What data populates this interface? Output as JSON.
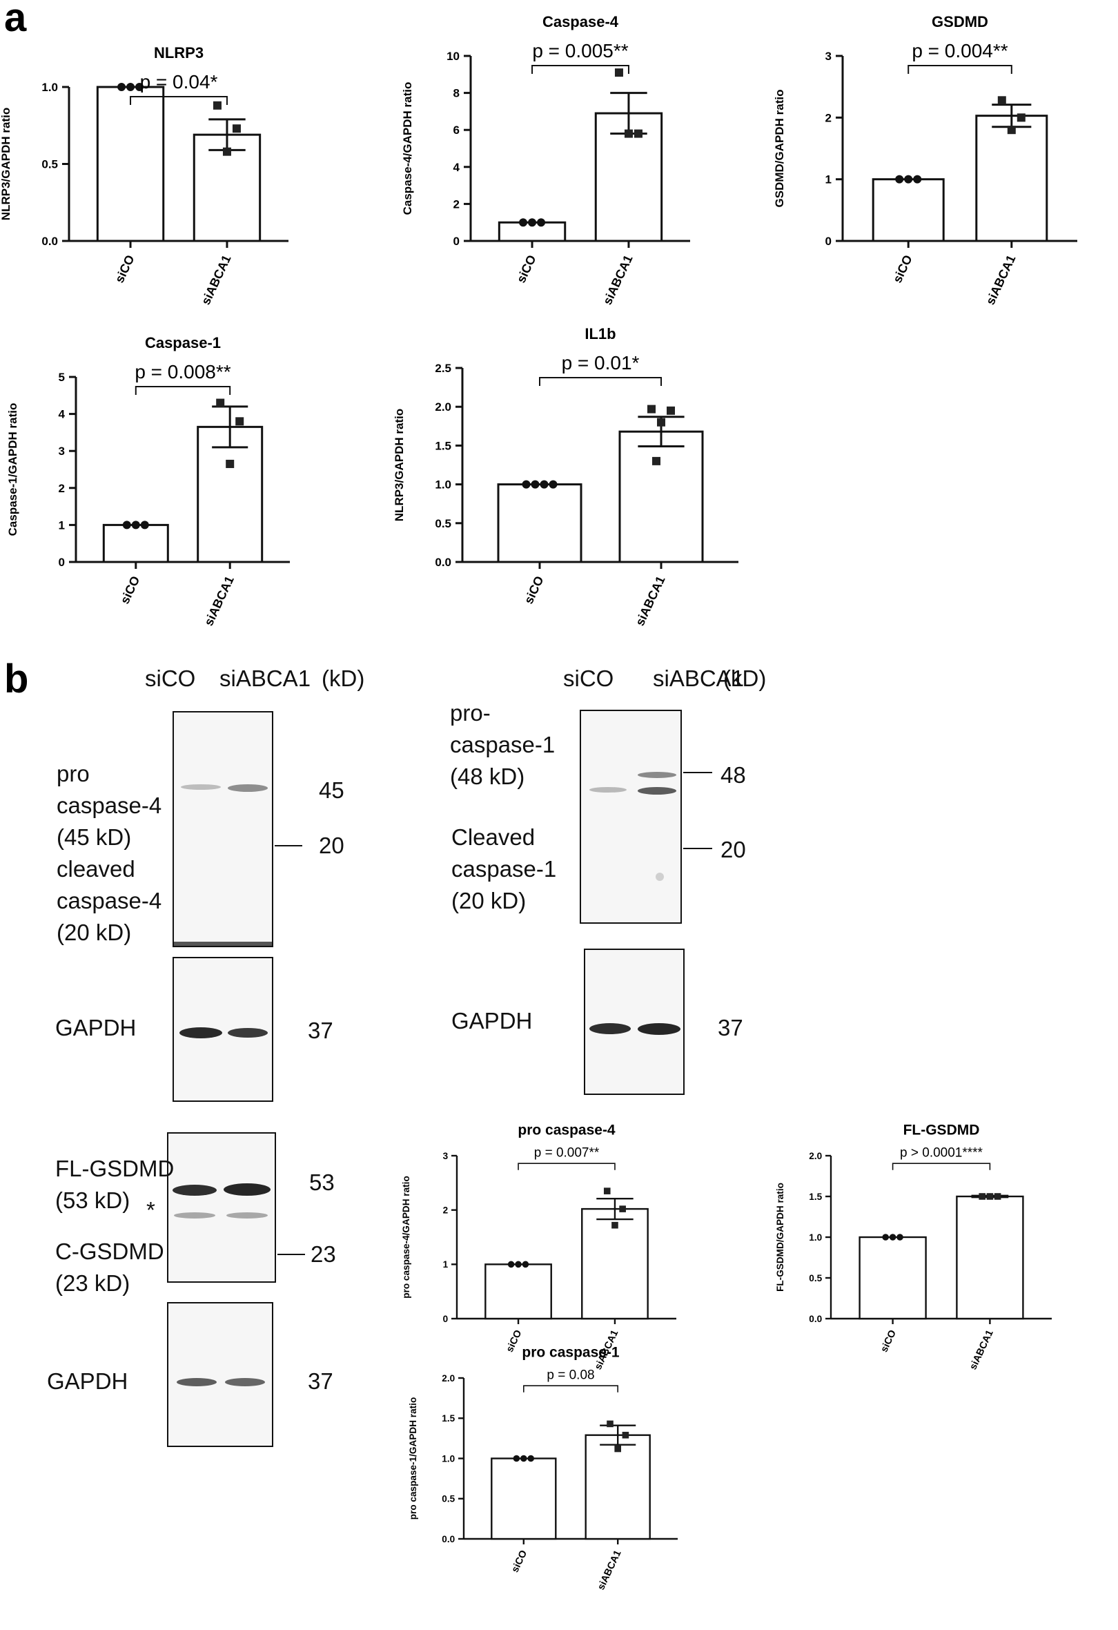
{
  "panels": {
    "a": "a",
    "b": "b"
  },
  "chart_data": [
    {
      "id": "nlrp3",
      "type": "bar",
      "title": "NLRP3",
      "ylabel": "NLRP3/GAPDH ratio",
      "categories": [
        "siCO",
        "siABCA1"
      ],
      "values": [
        1.0,
        0.69
      ],
      "errors": [
        0,
        0.1
      ],
      "points": [
        [
          1.0,
          1.0,
          1.0
        ],
        [
          0.88,
          0.73,
          0.58
        ]
      ],
      "ylim": [
        0,
        1.0
      ],
      "yticks": [
        0.0,
        0.5,
        1.0
      ],
      "yticklabels": [
        "0.0",
        "0.5",
        "1.0"
      ],
      "pvalue": "p = 0.04*"
    },
    {
      "id": "caspase4",
      "type": "bar",
      "title": "Caspase-4",
      "ylabel": "Caspase-4/GAPDH ratio",
      "categories": [
        "siCO",
        "siABCA1"
      ],
      "values": [
        1.0,
        6.9
      ],
      "errors": [
        0,
        1.1
      ],
      "points": [
        [
          1.0,
          1.0,
          1.0
        ],
        [
          9.1,
          5.8,
          5.8
        ]
      ],
      "ylim": [
        0,
        10
      ],
      "yticks": [
        0,
        2,
        4,
        6,
        8,
        10
      ],
      "yticklabels": [
        "0",
        "2",
        "4",
        "6",
        "8",
        "10"
      ],
      "pvalue": "p = 0.005**"
    },
    {
      "id": "gsdmd",
      "type": "bar",
      "title": "GSDMD",
      "ylabel": "GSDMD/GAPDH ratio",
      "categories": [
        "siCO",
        "siABCA1"
      ],
      "values": [
        1.0,
        2.03
      ],
      "errors": [
        0,
        0.18
      ],
      "points": [
        [
          1.0,
          1.0,
          1.0
        ],
        [
          2.28,
          2.0,
          1.8
        ]
      ],
      "ylim": [
        0,
        3
      ],
      "yticks": [
        0,
        1,
        2,
        3
      ],
      "yticklabels": [
        "0",
        "1",
        "2",
        "3"
      ],
      "pvalue": "p = 0.004**"
    },
    {
      "id": "caspase1",
      "type": "bar",
      "title": "Caspase-1",
      "ylabel": "Caspase-1/GAPDH ratio",
      "categories": [
        "siCO",
        "siABCA1"
      ],
      "values": [
        1.0,
        3.65
      ],
      "errors": [
        0,
        0.55
      ],
      "points": [
        [
          1.0,
          1.0,
          1.0
        ],
        [
          4.3,
          3.8,
          2.65
        ]
      ],
      "ylim": [
        0,
        5
      ],
      "yticks": [
        0,
        1,
        2,
        3,
        4,
        5
      ],
      "yticklabels": [
        "0",
        "1",
        "2",
        "3",
        "4",
        "5"
      ],
      "pvalue": "p = 0.008**"
    },
    {
      "id": "il1b",
      "type": "bar",
      "title": "IL1b",
      "ylabel": "NLRP3/GAPDH ratio",
      "categories": [
        "siCO",
        "siABCA1"
      ],
      "values": [
        1.0,
        1.68
      ],
      "errors": [
        0,
        0.19
      ],
      "points": [
        [
          1.0,
          1.0,
          1.0,
          1.0
        ],
        [
          1.97,
          1.95,
          1.8,
          1.3
        ]
      ],
      "ylim": [
        0,
        2.5
      ],
      "yticks": [
        0.0,
        0.5,
        1.0,
        1.5,
        2.0,
        2.5
      ],
      "yticklabels": [
        "0.0",
        "0.5",
        "1.0",
        "1.5",
        "2.0",
        "2.5"
      ],
      "pvalue": "p = 0.01*"
    },
    {
      "id": "procasp4",
      "type": "bar",
      "title": "pro caspase-4",
      "ylabel": "pro caspase-4/GAPDH ratio",
      "categories": [
        "siCO",
        "siABCA1"
      ],
      "values": [
        1.0,
        2.02
      ],
      "errors": [
        0,
        0.19
      ],
      "points": [
        [
          1.0,
          1.0,
          1.0
        ],
        [
          2.35,
          2.02,
          1.72
        ]
      ],
      "ylim": [
        0,
        3
      ],
      "yticks": [
        0,
        1,
        2,
        3
      ],
      "yticklabels": [
        "0",
        "1",
        "2",
        "3"
      ],
      "pvalue": "p = 0.007**"
    },
    {
      "id": "flgsdmd",
      "type": "bar",
      "title": "FL-GSDMD",
      "ylabel": "FL-GSDMD/GAPDH ratio",
      "categories": [
        "siCO",
        "siABCA1"
      ],
      "values": [
        1.0,
        1.5
      ],
      "errors": [
        0,
        0.01
      ],
      "points": [
        [
          1.0,
          1.0,
          1.0
        ],
        [
          1.5,
          1.5,
          1.5
        ]
      ],
      "ylim": [
        0,
        2.0
      ],
      "yticks": [
        0.0,
        0.5,
        1.0,
        1.5,
        2.0
      ],
      "yticklabels": [
        "0.0",
        "0.5",
        "1.0",
        "1.5",
        "2.0"
      ],
      "pvalue": "p > 0.0001****"
    },
    {
      "id": "procasp1",
      "type": "bar",
      "title": "pro caspase-1",
      "ylabel": "pro caspase-1/GAPDH ratio",
      "categories": [
        "siCO",
        "siABCA1"
      ],
      "values": [
        1.0,
        1.29
      ],
      "errors": [
        0,
        0.12
      ],
      "points": [
        [
          1.0,
          1.0,
          1.0
        ],
        [
          1.43,
          1.29,
          1.12
        ]
      ],
      "ylim": [
        0,
        2.0
      ],
      "yticks": [
        0.0,
        0.5,
        1.0,
        1.5,
        2.0
      ],
      "yticklabels": [
        "0.0",
        "0.5",
        "1.0",
        "1.5",
        "2.0"
      ],
      "pvalue": "p = 0.08"
    }
  ],
  "blots": {
    "lanes": {
      "sico": "siCO",
      "siabca1": "siABCA1",
      "kd": "(kD)"
    },
    "casp4": {
      "l1": "pro",
      "l2": "caspase-4",
      "l3": "(45 kD)",
      "l4": "cleaved",
      "l5": "caspase-4",
      "l6": "(20 kD)",
      "kd_top": "45",
      "kd_bottom": "20"
    },
    "casp1": {
      "l1": "pro-",
      "l2": "caspase-1",
      "l3": "(48 kD)",
      "l4": "Cleaved",
      "l5": "caspase-1",
      "l6": "(20 kD)",
      "kd_top": "48",
      "kd_bottom": "20"
    },
    "gsdmd": {
      "l1": "FL-GSDMD",
      "l2": "(53 kD)",
      "l3": "C-GSDMD",
      "l4": "(23 kD)",
      "star": "*",
      "kd_top": "53",
      "kd_bottom": "23"
    },
    "gapdh": {
      "label": "GAPDH",
      "kd": "37"
    }
  }
}
